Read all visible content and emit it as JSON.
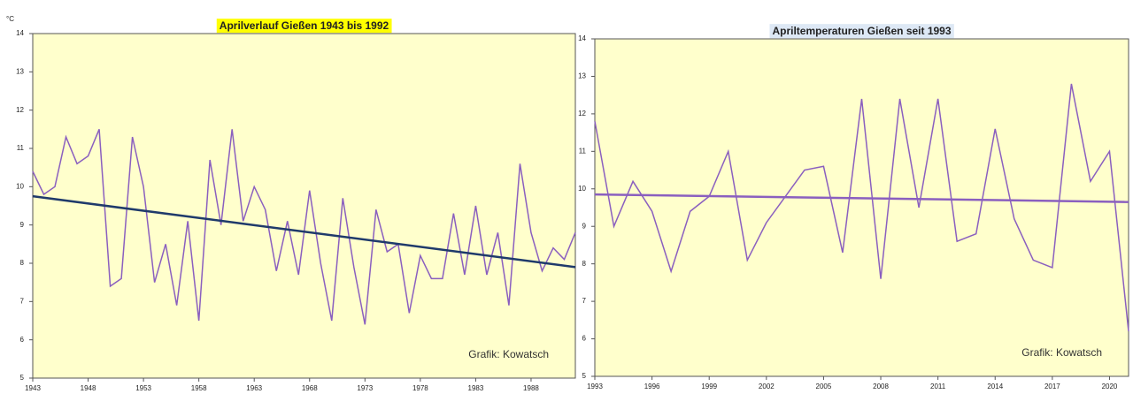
{
  "chart_data": [
    {
      "type": "line",
      "title": "Aprilverlauf Gießen 1943 bis 1992",
      "y_label": "°C",
      "annotation": "Grafik: Kowatsch",
      "x": [
        1943,
        1944,
        1945,
        1946,
        1947,
        1948,
        1949,
        1950,
        1951,
        1952,
        1953,
        1954,
        1955,
        1956,
        1957,
        1958,
        1959,
        1960,
        1961,
        1962,
        1963,
        1964,
        1965,
        1966,
        1967,
        1968,
        1969,
        1970,
        1971,
        1972,
        1973,
        1974,
        1975,
        1976,
        1977,
        1978,
        1979,
        1980,
        1981,
        1982,
        1983,
        1984,
        1985,
        1986,
        1987,
        1988,
        1989,
        1990,
        1991,
        1992
      ],
      "series": [
        {
          "color": "#8a5fbf",
          "values": [
            10.4,
            9.8,
            10.0,
            11.3,
            10.6,
            10.8,
            11.5,
            7.4,
            7.6,
            11.3,
            10.0,
            7.5,
            8.5,
            6.9,
            9.1,
            6.5,
            10.7,
            9.0,
            11.5,
            9.1,
            10.0,
            9.4,
            7.8,
            9.1,
            7.7,
            9.9,
            8.0,
            6.5,
            9.7,
            7.9,
            6.4,
            9.4,
            8.3,
            8.5,
            6.7,
            8.2,
            7.6,
            7.6,
            9.3,
            7.7,
            9.5,
            7.7,
            8.8,
            6.9,
            10.6,
            8.8,
            7.8,
            8.4,
            8.1,
            8.8
          ]
        }
      ],
      "trend": {
        "color": "#1f3a6b",
        "values": [
          9.75,
          7.9
        ]
      },
      "xlim": [
        1943,
        1992
      ],
      "xticks": [
        1943,
        1948,
        1953,
        1958,
        1963,
        1968,
        1973,
        1978,
        1983,
        1988
      ],
      "ylim": [
        5,
        14
      ],
      "yticks": [
        5,
        6,
        7,
        8,
        9,
        10,
        11,
        12,
        13,
        14
      ],
      "background": "#ffffcc",
      "title_highlight": "#ffff00"
    },
    {
      "type": "line",
      "title": "Apriltemperaturen Gießen seit 1993",
      "annotation": "Grafik: Kowatsch",
      "x": [
        1993,
        1994,
        1995,
        1996,
        1997,
        1998,
        1999,
        2000,
        2001,
        2002,
        2003,
        2004,
        2005,
        2006,
        2007,
        2008,
        2009,
        2010,
        2011,
        2012,
        2013,
        2014,
        2015,
        2016,
        2017,
        2018,
        2019,
        2020,
        2021
      ],
      "series": [
        {
          "color": "#8a5fbf",
          "values": [
            11.8,
            9.0,
            10.2,
            9.4,
            7.8,
            9.4,
            9.8,
            11.0,
            8.1,
            9.1,
            9.8,
            10.5,
            10.6,
            8.3,
            12.4,
            7.6,
            12.4,
            9.5,
            12.4,
            8.6,
            8.8,
            11.6,
            9.2,
            8.1,
            7.9,
            12.8,
            10.2,
            11.0,
            6.2
          ]
        }
      ],
      "trend": {
        "color": "#8a5fbf",
        "values": [
          9.85,
          9.65
        ]
      },
      "xlim": [
        1993,
        2021
      ],
      "xticks": [
        1993,
        1996,
        1999,
        2002,
        2005,
        2008,
        2011,
        2014,
        2017,
        2020
      ],
      "ylim": [
        5,
        14
      ],
      "yticks": [
        5,
        6,
        7,
        8,
        9,
        10,
        11,
        12,
        13,
        14
      ],
      "background": "#ffffcc",
      "title_highlight": "#dde8f5"
    }
  ]
}
